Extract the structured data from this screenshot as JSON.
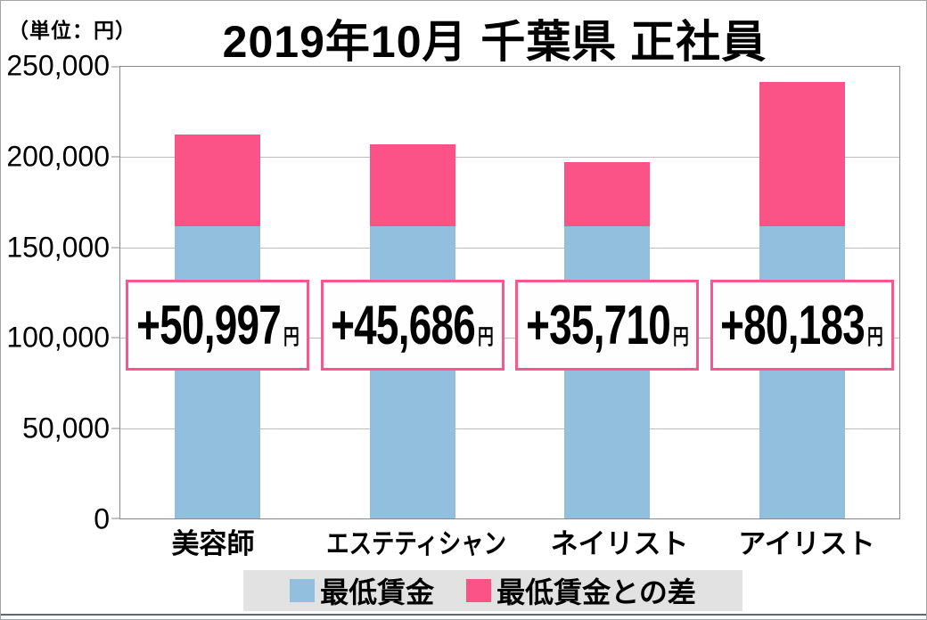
{
  "colors": {
    "bar_base_blue": "#92BFDE",
    "bar_diff_pink": "#FB5287",
    "label_box_border_pink": "#F9578D",
    "legend_background": "#E2E2E2",
    "axis_gray": "#8A8A8A",
    "gridline_gray": "#BDBDBD"
  },
  "chart_data": {
    "type": "bar",
    "stacked": true,
    "title": "2019年10月 千葉県 正社員",
    "unit_label": "（単位：円）",
    "categories": [
      "美容師",
      "エステティシャン",
      "ネイリスト",
      "アイリスト"
    ],
    "series": [
      {
        "name": "最低賃金",
        "color": "#92BFDE",
        "values": [
          161525,
          161525,
          161525,
          161525
        ]
      },
      {
        "name": "最低賃金との差",
        "color": "#FB5287",
        "values": [
          50997,
          45686,
          35710,
          80183
        ]
      }
    ],
    "bar_totals": [
      212522,
      207211,
      197235,
      241708
    ],
    "bar_labels": [
      "+50,997",
      "+45,686",
      "+35,710",
      "+80,183"
    ],
    "bar_label_unit": "円",
    "ylim": [
      0,
      250000
    ],
    "y_ticks": [
      "250,000",
      "200,000",
      "150,000",
      "100,000",
      "50,000",
      "0"
    ],
    "grid": true,
    "legend_position": "bottom"
  }
}
